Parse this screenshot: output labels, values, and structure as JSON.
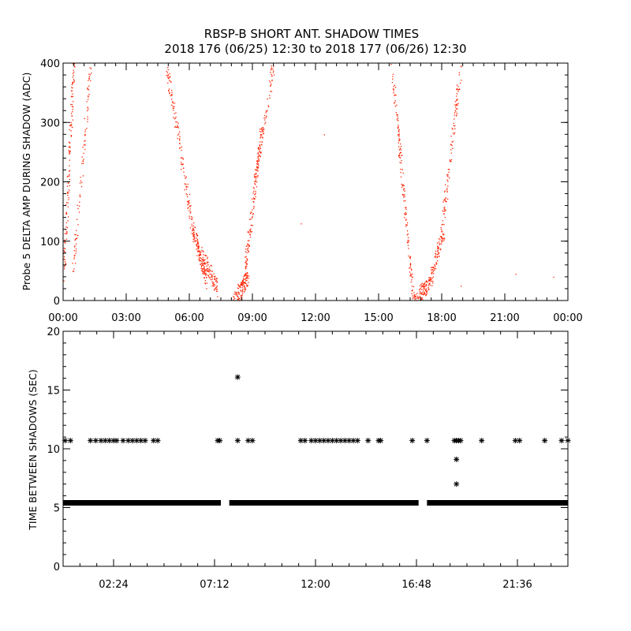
{
  "title_line1": "RBSP-B SHORT ANT. SHADOW TIMES",
  "title_line2": "2018 176 (06/25) 12:30 to 2018 177 (06/26) 12:30",
  "colors": {
    "top_points": "#ff2000",
    "bottom_points": "#000000",
    "axes": "#000000"
  },
  "chart_data": [
    {
      "type": "scatter",
      "title": "",
      "ylabel": "Probe 5 DELTA AMP DURING SHADOW (ADC)",
      "xlabel": "",
      "xlim": [
        0,
        24
      ],
      "ylim": [
        0,
        400
      ],
      "xticks": [
        0,
        3,
        6,
        9,
        12,
        15,
        18,
        21,
        24
      ],
      "xtick_labels": [
        "00:00",
        "03:00",
        "06:00",
        "09:00",
        "12:00",
        "15:00",
        "18:00",
        "21:00",
        "00:00"
      ],
      "yticks": [
        0,
        100,
        200,
        300,
        400
      ],
      "ytick_labels": [
        "0",
        "100",
        "200",
        "300",
        "400"
      ],
      "segments": [
        {
          "x0": 0.0,
          "x1": 0.5,
          "y0": 30,
          "y1": 400,
          "n": 130
        },
        {
          "x0": 0.45,
          "x1": 1.3,
          "y0": 40,
          "y1": 400,
          "n": 90
        },
        {
          "x0": 4.9,
          "x1": 6.1,
          "y0": 400,
          "y1": 130,
          "n": 120
        },
        {
          "x0": 6.1,
          "x1": 6.8,
          "y0": 130,
          "y1": 30,
          "n": 140
        },
        {
          "x0": 6.6,
          "x1": 7.3,
          "y0": 80,
          "y1": 20,
          "n": 90
        },
        {
          "x0": 8.1,
          "x1": 8.8,
          "y0": 0,
          "y1": 40,
          "n": 120
        },
        {
          "x0": 8.6,
          "x1": 9.4,
          "y0": 40,
          "y1": 280,
          "n": 130
        },
        {
          "x0": 9.0,
          "x1": 10.0,
          "y0": 180,
          "y1": 400,
          "n": 100
        },
        {
          "x0": 15.6,
          "x1": 16.6,
          "y0": 400,
          "y1": 20,
          "n": 150
        },
        {
          "x0": 16.6,
          "x1": 17.4,
          "y0": 0,
          "y1": 30,
          "n": 110
        },
        {
          "x0": 17.4,
          "x1": 18.1,
          "y0": 30,
          "y1": 120,
          "n": 100
        },
        {
          "x0": 18.0,
          "x1": 18.9,
          "y0": 120,
          "y1": 400,
          "n": 110
        }
      ],
      "isolated_points": [
        [
          12.4,
          280
        ],
        [
          21.5,
          45
        ],
        [
          18.9,
          25
        ],
        [
          11.3,
          130
        ],
        [
          23.3,
          40
        ]
      ]
    },
    {
      "type": "scatter",
      "title": "",
      "ylabel": "TIME BETWEEN SHADOWS (SEC)",
      "xlabel": "",
      "xlim": [
        0,
        24
      ],
      "ylim": [
        0,
        20
      ],
      "xticks": [
        2.4,
        7.2,
        12.0,
        16.8,
        21.6
      ],
      "xtick_labels": [
        "02:24",
        "07:12",
        "12:00",
        "16:48",
        "21:36"
      ],
      "yticks": [
        0,
        5,
        10,
        15,
        20
      ],
      "ytick_labels": [
        "0",
        "5",
        "10",
        "15",
        "20"
      ],
      "baseline": {
        "y": 5.4,
        "ranges": [
          [
            0.0,
            7.5
          ],
          [
            7.9,
            16.9
          ],
          [
            17.3,
            24.0
          ]
        ]
      },
      "outliers": [
        [
          0.1,
          10.7
        ],
        [
          0.35,
          10.7
        ],
        [
          1.3,
          10.7
        ],
        [
          1.55,
          10.7
        ],
        [
          1.8,
          10.7
        ],
        [
          2.0,
          10.7
        ],
        [
          2.2,
          10.7
        ],
        [
          2.4,
          10.7
        ],
        [
          2.55,
          10.7
        ],
        [
          2.85,
          10.7
        ],
        [
          3.1,
          10.7
        ],
        [
          3.3,
          10.7
        ],
        [
          3.5,
          10.7
        ],
        [
          3.7,
          10.7
        ],
        [
          3.9,
          10.7
        ],
        [
          4.3,
          10.7
        ],
        [
          4.5,
          10.7
        ],
        [
          7.35,
          10.7
        ],
        [
          7.45,
          10.7
        ],
        [
          8.3,
          16.1
        ],
        [
          8.3,
          10.7
        ],
        [
          8.8,
          10.7
        ],
        [
          9.0,
          10.7
        ],
        [
          11.3,
          10.7
        ],
        [
          11.5,
          10.7
        ],
        [
          11.8,
          10.7
        ],
        [
          12.0,
          10.7
        ],
        [
          12.2,
          10.7
        ],
        [
          12.4,
          10.7
        ],
        [
          12.6,
          10.7
        ],
        [
          12.8,
          10.7
        ],
        [
          13.0,
          10.7
        ],
        [
          13.2,
          10.7
        ],
        [
          13.4,
          10.7
        ],
        [
          13.6,
          10.7
        ],
        [
          13.8,
          10.7
        ],
        [
          14.0,
          10.7
        ],
        [
          14.5,
          10.7
        ],
        [
          15.0,
          10.7
        ],
        [
          15.1,
          10.7
        ],
        [
          16.6,
          10.7
        ],
        [
          17.3,
          10.7
        ],
        [
          18.6,
          10.7
        ],
        [
          18.7,
          10.7
        ],
        [
          18.8,
          10.7
        ],
        [
          18.9,
          10.7
        ],
        [
          18.7,
          9.1
        ],
        [
          18.7,
          7.0
        ],
        [
          19.9,
          10.7
        ],
        [
          21.5,
          10.7
        ],
        [
          21.7,
          10.7
        ],
        [
          22.9,
          10.7
        ],
        [
          23.7,
          10.7
        ],
        [
          24.0,
          10.7
        ]
      ]
    }
  ]
}
